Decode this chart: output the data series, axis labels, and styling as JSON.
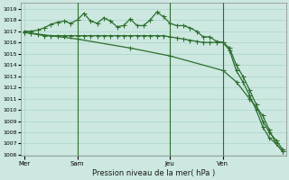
{
  "xlabel": "Pression niveau de la mer( hPa )",
  "ylim": [
    1006,
    1019
  ],
  "ytick_min": 1006,
  "ytick_max": 1019,
  "background_color": "#cce8e0",
  "grid_color": "#aad4c8",
  "line_color": "#2d6e2d",
  "xtick_labels": [
    "Mer",
    "Sam",
    "Jeu",
    "Ven"
  ],
  "xtick_positions": [
    0,
    8,
    22,
    30
  ],
  "total_points": 40,
  "series_wavy_x": [
    0,
    1,
    2,
    3,
    4,
    5,
    6,
    7,
    8,
    9,
    10,
    11,
    12,
    13,
    14,
    15,
    16,
    17,
    18,
    19,
    20,
    21,
    22,
    23,
    24,
    25,
    26,
    27,
    28,
    29,
    30,
    31,
    32,
    33,
    34,
    35,
    36,
    37,
    38,
    39
  ],
  "series_wavy_y": [
    1017.0,
    1017.0,
    1017.1,
    1017.3,
    1017.6,
    1017.8,
    1017.9,
    1017.7,
    1018.0,
    1018.6,
    1017.9,
    1017.7,
    1018.2,
    1017.9,
    1017.4,
    1017.5,
    1018.1,
    1017.5,
    1017.5,
    1018.0,
    1018.7,
    1018.3,
    1017.7,
    1017.5,
    1017.5,
    1017.3,
    1017.0,
    1016.5,
    1016.5,
    1016.1,
    1016.0,
    1015.3,
    1013.5,
    1012.5,
    1011.3,
    1010.0,
    1008.5,
    1007.5,
    1007.0,
    1006.3
  ],
  "series_flat_x": [
    0,
    1,
    2,
    3,
    4,
    5,
    6,
    7,
    8,
    9,
    10,
    11,
    12,
    13,
    14,
    15,
    16,
    17,
    18,
    19,
    20,
    21,
    22,
    23,
    24,
    25,
    26,
    27,
    28,
    29,
    30,
    31,
    32,
    33,
    34,
    35,
    36,
    37,
    38,
    39
  ],
  "series_flat_y": [
    1016.9,
    1016.8,
    1016.7,
    1016.6,
    1016.6,
    1016.6,
    1016.6,
    1016.6,
    1016.6,
    1016.6,
    1016.6,
    1016.6,
    1016.6,
    1016.6,
    1016.6,
    1016.6,
    1016.6,
    1016.6,
    1016.6,
    1016.6,
    1016.6,
    1016.6,
    1016.5,
    1016.4,
    1016.3,
    1016.2,
    1016.1,
    1016.0,
    1016.0,
    1016.0,
    1016.0,
    1015.5,
    1014.0,
    1013.0,
    1011.8,
    1010.5,
    1009.0,
    1008.0,
    1007.3,
    1006.5
  ],
  "series_diag_x": [
    0,
    8,
    16,
    22,
    30,
    32,
    34,
    36,
    37,
    38,
    39
  ],
  "series_diag_y": [
    1016.9,
    1016.3,
    1015.5,
    1014.8,
    1013.5,
    1012.5,
    1011.0,
    1009.5,
    1008.2,
    1007.0,
    1006.3
  ],
  "vlines": [
    8,
    22,
    30
  ]
}
